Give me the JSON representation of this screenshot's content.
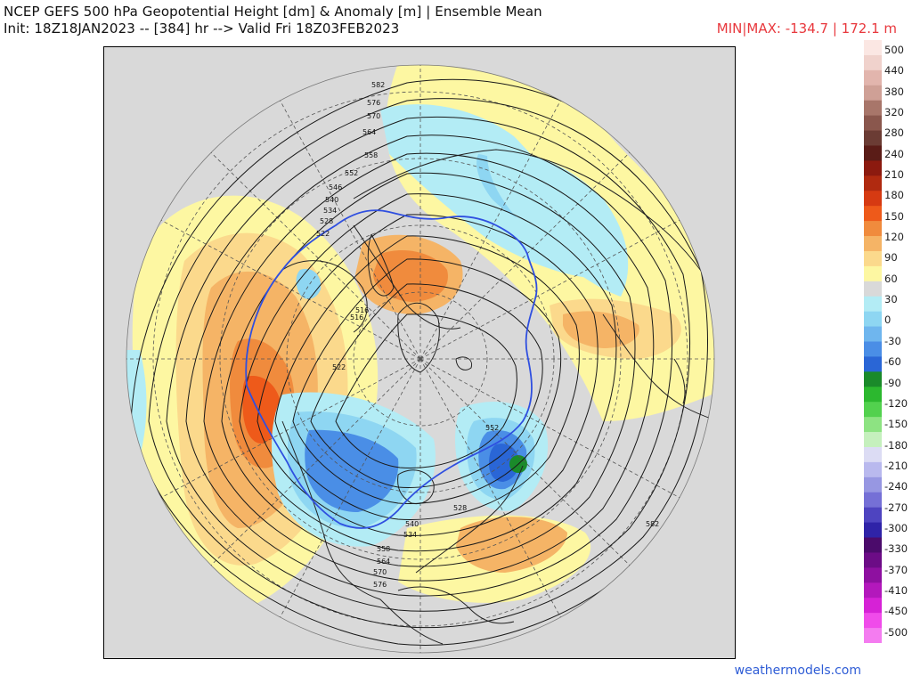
{
  "title": {
    "line1": "NCEP GEFS 500 hPa Geopotential Height [dm] & Anomaly [m] | Ensemble Mean",
    "line2": "Init: 18Z18JAN2023 -- [384] hr --> Valid Fri 18Z03FEB2023"
  },
  "minmax": "MIN|MAX: -134.7 | 172.1 m",
  "credit": "weathermodels.com",
  "colorbar": {
    "labels": [
      "500",
      "440",
      "380",
      "320",
      "280",
      "240",
      "210",
      "180",
      "150",
      "120",
      "90",
      "60",
      "30",
      "0",
      "-30",
      "-60",
      "-90",
      "-120",
      "-150",
      "-180",
      "-210",
      "-240",
      "-270",
      "-300",
      "-330",
      "-370",
      "-410",
      "-450",
      "-500"
    ],
    "colors": [
      "#fbe7e3",
      "#f0d2cc",
      "#e2b5ad",
      "#cfa096",
      "#a8766a",
      "#8a574d",
      "#6b3c34",
      "#5a1c17",
      "#8c1a0f",
      "#b02a10",
      "#d63a12",
      "#ee5a1a",
      "#f08b3d",
      "#f5b466",
      "#fbd98c",
      "#fdf7a2",
      "#d9d9d9",
      "#b3ecf5",
      "#8ed6f2",
      "#6fb6ee",
      "#4a8ee6",
      "#2a66d6",
      "#1a8a2a",
      "#2cb82f",
      "#52d14e",
      "#8de382",
      "#c5f0bd",
      "#dcdcf4",
      "#b9b9ee",
      "#9797e2",
      "#7570d6",
      "#4e44c0",
      "#2f23a8",
      "#4b0b6b",
      "#6c0c86",
      "#8e10a0",
      "#b318bc",
      "#d622d6",
      "#f04bea",
      "#f47cf0"
    ],
    "label_rows": [
      0,
      2,
      4,
      6,
      8,
      10,
      12,
      14,
      16,
      18,
      20,
      22,
      24,
      26,
      28,
      30,
      32,
      34,
      36,
      38,
      40,
      42,
      44,
      46,
      48,
      50,
      52,
      54,
      56
    ]
  },
  "contour_labels": [
    "582",
    "576",
    "570",
    "564",
    "558",
    "552",
    "546",
    "540",
    "534",
    "528",
    "522",
    "516",
    "516",
    "522",
    "552",
    "582",
    "558",
    "564",
    "570",
    "576",
    "540",
    "534",
    "528"
  ],
  "anomaly_colors": {
    "pos30": "#fdf7a2",
    "pos60": "#fbd98c",
    "pos90": "#f5b466",
    "pos120": "#f08b3d",
    "pos150": "#ee5a1a",
    "neg30": "#b3ecf5",
    "neg60": "#8ed6f2",
    "neg90": "#4a8ee6",
    "neg120": "#2a66d6",
    "neg150": "#1a8a2a"
  }
}
